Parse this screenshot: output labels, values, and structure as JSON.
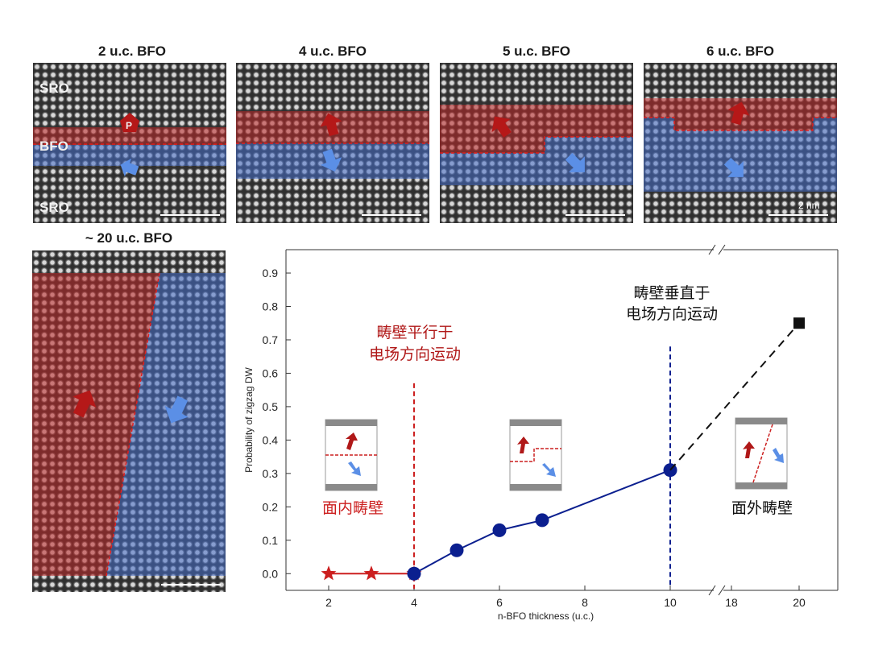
{
  "panels": {
    "p2": {
      "title": "2 u.c. BFO",
      "label_top": "SRO",
      "label_mid": "BFO",
      "label_bottom": "SRO",
      "p_label": "P"
    },
    "p4": {
      "title": "4 u.c. BFO"
    },
    "p5": {
      "title": "5 u.c. BFO"
    },
    "p6": {
      "title": "6 u.c. BFO",
      "scale_label": "2 nm"
    },
    "p20": {
      "title": "~ 20 u.c. BFO"
    }
  },
  "colors": {
    "red": "#cc1f1f",
    "blue": "#5b8fe6",
    "navy": "#0b1f8f",
    "dark_red": "#b01818",
    "black": "#111111"
  },
  "chart_data": {
    "type": "line",
    "xlabel": "n-BFO thickness (u.c.)",
    "ylabel": "Probability of zigzag DW",
    "ylim": [
      -0.05,
      0.97
    ],
    "xticks": [
      "2",
      "4",
      "6",
      "8",
      "10",
      "18",
      "20"
    ],
    "yticks": [
      "0.0",
      "0.1",
      "0.2",
      "0.3",
      "0.4",
      "0.5",
      "0.6",
      "0.7",
      "0.8",
      "0.9"
    ],
    "axis_break": "between 10 and 18",
    "series": [
      {
        "name": "in-plane",
        "marker": "star",
        "color": "red",
        "x": [
          2,
          3,
          4
        ],
        "y": [
          0.0,
          0.0,
          0.0
        ]
      },
      {
        "name": "zigzag",
        "marker": "circle",
        "color": "navy",
        "x": [
          4,
          5,
          6,
          7,
          10
        ],
        "y": [
          0.0,
          0.07,
          0.13,
          0.16,
          0.31
        ]
      },
      {
        "name": "out-of-plane",
        "marker": "square",
        "color": "black",
        "dashed": true,
        "x": [
          10,
          20
        ],
        "y": [
          0.31,
          0.75
        ]
      }
    ],
    "vlines": [
      {
        "x": 4,
        "color": "red",
        "label": "畴壁平行于 电场方向运动"
      },
      {
        "x": 10,
        "color": "navy",
        "label": "畴壁垂直于 电场方向运动"
      }
    ],
    "annotations": {
      "parallel_line1": "畴壁平行于",
      "parallel_line2": "电场方向运动",
      "perp_line1": "畴壁垂直于",
      "perp_line2": "电场方向运动",
      "in_plane": "面内畴壁",
      "out_of_plane": "面外畴壁"
    }
  }
}
